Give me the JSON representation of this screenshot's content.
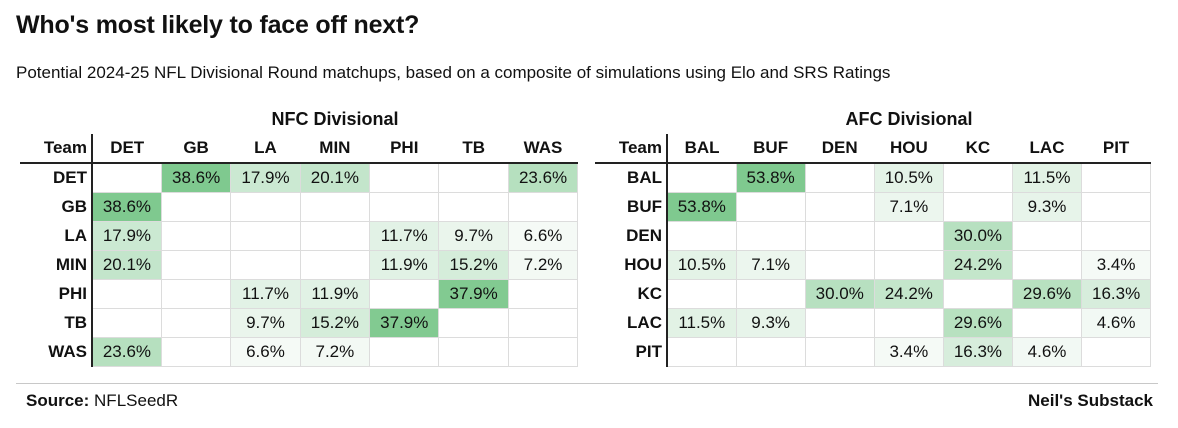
{
  "header": {
    "title": "Who's most likely to face off next?",
    "subtitle": "Potential 2024-25 NFL Divisional Round matchups, based on a composite of simulations using Elo and SRS Ratings"
  },
  "footer": {
    "source_label": "Source:",
    "source_value": "NFLSeedR",
    "credit": "Neil's Substack"
  },
  "chart_data": [
    {
      "type": "table",
      "title": "NFC Divisional",
      "corner_label": "Team",
      "unit": "%",
      "teams": [
        "DET",
        "GB",
        "LA",
        "MIN",
        "PHI",
        "TB",
        "WAS"
      ],
      "values": [
        [
          null,
          38.6,
          17.9,
          20.1,
          null,
          null,
          23.6
        ],
        [
          38.6,
          null,
          null,
          null,
          null,
          null,
          null
        ],
        [
          17.9,
          null,
          null,
          null,
          11.7,
          9.7,
          6.6
        ],
        [
          20.1,
          null,
          null,
          null,
          11.9,
          15.2,
          7.2
        ],
        [
          null,
          null,
          11.7,
          11.9,
          null,
          37.9,
          null
        ],
        [
          null,
          null,
          9.7,
          15.2,
          37.9,
          null,
          null
        ],
        [
          23.6,
          null,
          6.6,
          7.2,
          null,
          null,
          null
        ]
      ]
    },
    {
      "type": "table",
      "title": "AFC Divisional",
      "corner_label": "Team",
      "unit": "%",
      "teams": [
        "BAL",
        "BUF",
        "DEN",
        "HOU",
        "KC",
        "LAC",
        "PIT"
      ],
      "values": [
        [
          null,
          53.8,
          null,
          10.5,
          null,
          11.5,
          null
        ],
        [
          53.8,
          null,
          null,
          7.1,
          null,
          9.3,
          null
        ],
        [
          null,
          null,
          null,
          null,
          30.0,
          null,
          null
        ],
        [
          10.5,
          7.1,
          null,
          null,
          24.2,
          null,
          3.4
        ],
        [
          null,
          null,
          30.0,
          24.2,
          null,
          29.6,
          16.3
        ],
        [
          11.5,
          9.3,
          null,
          null,
          29.6,
          null,
          4.6
        ],
        [
          null,
          null,
          null,
          3.4,
          16.3,
          4.6,
          null
        ]
      ]
    }
  ],
  "colors": {
    "scale_low": "#f5faf6",
    "scale_high": "#7fc98f"
  }
}
